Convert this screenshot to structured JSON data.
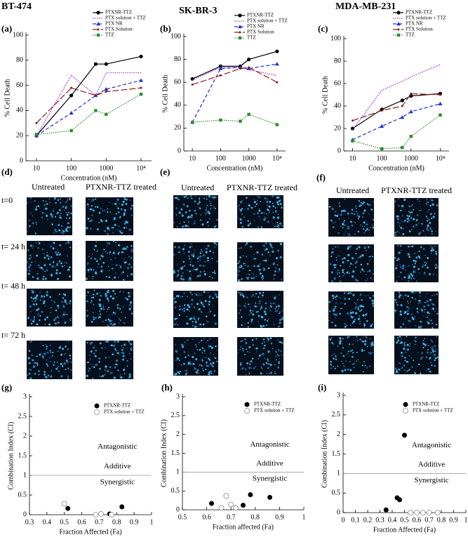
{
  "chart_data": [
    {
      "type": "line",
      "title": "BT-474",
      "panel_label": "(a)",
      "xlabel": "Concentration (nM)",
      "ylabel": "% Cell Death",
      "log_x": true,
      "x": [
        10,
        100,
        500,
        1000,
        10000
      ],
      "xlim": [
        5,
        20000
      ],
      "xticks": [
        10,
        100,
        1000,
        {
          "value": 10000,
          "label": "10⁴"
        }
      ],
      "ylim": [
        0,
        100
      ],
      "yticks": [
        0,
        20,
        40,
        60,
        80,
        100
      ],
      "series": [
        {
          "name": "PTXNR-TTZ",
          "color": "#000000",
          "style": "solid",
          "marker": "circle",
          "values": [
            20,
            52,
            77,
            77,
            83
          ]
        },
        {
          "name": "PTX solution + TTZ",
          "color": "#9b30d0",
          "style": "dotted",
          "marker": "none",
          "values": [
            20,
            68,
            52,
            70,
            70
          ]
        },
        {
          "name": "PTX NR",
          "color": "#1f2fd0",
          "style": "dashed",
          "marker": "triangle",
          "values": [
            20,
            38,
            52,
            57,
            64
          ]
        },
        {
          "name": "PTX Solution",
          "color": "#8b1a1a",
          "style": "longdash",
          "marker": "dot",
          "values": [
            30,
            58,
            52,
            55,
            58
          ]
        },
        {
          "name": "TTZ",
          "color": "#2e8b2e",
          "style": "dotted",
          "marker": "square",
          "values": [
            21,
            24,
            40,
            37,
            53
          ]
        }
      ]
    },
    {
      "type": "line",
      "title": "SK-BR-3",
      "panel_label": "(b)",
      "xlabel": "Concentration (nM)",
      "ylabel": "% Cell Death",
      "log_x": true,
      "x": [
        10,
        100,
        500,
        1000,
        10000
      ],
      "xlim": [
        5,
        20000
      ],
      "xticks": [
        10,
        100,
        1000,
        {
          "value": 10000,
          "label": "10⁴"
        }
      ],
      "ylim": [
        0,
        100
      ],
      "yticks": [
        0,
        20,
        40,
        60,
        80,
        100
      ],
      "series": [
        {
          "name": "PTXNR-TTZ",
          "color": "#000000",
          "style": "solid",
          "marker": "circle",
          "values": [
            63,
            74,
            74,
            80,
            87
          ]
        },
        {
          "name": "PTX solution + TTZ",
          "color": "#9b30d0",
          "style": "dotted",
          "marker": "none",
          "values": [
            62,
            73,
            73,
            71,
            66
          ]
        },
        {
          "name": "PTX NR",
          "color": "#1f2fd0",
          "style": "dashed",
          "marker": "triangle",
          "values": [
            25,
            72,
            73,
            72,
            76
          ]
        },
        {
          "name": "PTX Solution",
          "color": "#8b1a1a",
          "style": "longdash",
          "marker": "dot",
          "values": [
            58,
            66,
            72,
            73,
            60
          ]
        },
        {
          "name": "TTZ",
          "color": "#2e8b2e",
          "style": "dotted",
          "marker": "square",
          "values": [
            25,
            27,
            26,
            32,
            23
          ]
        }
      ]
    },
    {
      "type": "line",
      "title": "MDA-MB-231",
      "panel_label": "(c)",
      "xlabel": "Concentration (nM)",
      "ylabel": "% Cell Death",
      "log_x": true,
      "x": [
        10,
        100,
        500,
        1000,
        10000
      ],
      "xlim": [
        5,
        20000
      ],
      "xticks": [
        10,
        100,
        1000,
        {
          "value": 10000,
          "label": "10⁴"
        }
      ],
      "ylim": [
        0,
        100
      ],
      "yticks": [
        0,
        20,
        40,
        60,
        80,
        100
      ],
      "series": [
        {
          "name": "PTXNR-TTZ",
          "color": "#000000",
          "style": "solid",
          "marker": "circle",
          "values": [
            20,
            37,
            45,
            49,
            51
          ]
        },
        {
          "name": "PTX solution + TTZ",
          "color": "#9b30d0",
          "style": "dotted",
          "marker": "none",
          "values": [
            19,
            54,
            62,
            66,
            77
          ]
        },
        {
          "name": "PTX NR",
          "color": "#1f2fd0",
          "style": "dashed",
          "marker": "triangle",
          "values": [
            10,
            22,
            30,
            35,
            42
          ]
        },
        {
          "name": "PTX Solution",
          "color": "#8b1a1a",
          "style": "longdash",
          "marker": "dot",
          "values": [
            27,
            36,
            40,
            51,
            50
          ]
        },
        {
          "name": "TTZ",
          "color": "#2e8b2e",
          "style": "dotted",
          "marker": "square",
          "values": [
            9,
            2,
            3,
            13,
            32
          ]
        }
      ]
    },
    {
      "type": "scatter",
      "panel_label": "(g)",
      "xlabel": "Fraction Affected (Fa)",
      "ylabel": "Combination Index (CI)",
      "xlim": [
        0.3,
        1
      ],
      "xticks": [
        0.3,
        0.4,
        0.5,
        0.6,
        0.7,
        0.8,
        0.9,
        1
      ],
      "ylim": [
        0,
        3
      ],
      "yticks": [
        0,
        0.5,
        1,
        1.5,
        2,
        2.5,
        3
      ],
      "hline": 1,
      "annotations": [
        "Antagonistic",
        "Additive",
        "Synergistic"
      ],
      "series": [
        {
          "name": "PTXNR-TTZ",
          "color": "#000000",
          "marker": "filled",
          "x": [
            0.52,
            0.76,
            0.83
          ],
          "values": [
            0.16,
            0.02,
            0.2
          ]
        },
        {
          "name": "PTX solution + TTZ",
          "color": "#888888",
          "marker": "open",
          "x": [
            0.5,
            0.68,
            0.71,
            0.77
          ],
          "values": [
            0.28,
            0.0,
            0.02,
            0.0
          ]
        }
      ]
    },
    {
      "type": "scatter",
      "panel_label": "(h)",
      "xlabel": "Fraction affected (Fa)",
      "ylabel": "Combination Index (CI)",
      "xlim": [
        0.5,
        1
      ],
      "xticks": [
        0.5,
        0.6,
        0.7,
        0.8,
        0.9,
        1
      ],
      "ylim": [
        0,
        3
      ],
      "yticks": [
        0,
        0.5,
        1,
        1.5,
        2,
        2.5,
        3
      ],
      "hline": 1,
      "annotations": [
        "Antagonistic",
        "Additive",
        "Synergistic"
      ],
      "series": [
        {
          "name": "PTXNR-TTZ",
          "color": "#000000",
          "marker": "filled",
          "x": [
            0.62,
            0.75,
            0.78,
            0.86
          ],
          "values": [
            0.17,
            0.12,
            0.4,
            0.33
          ]
        },
        {
          "name": "PTX solution + TTZ",
          "color": "#888888",
          "marker": "open",
          "x": [
            0.66,
            0.68,
            0.7,
            0.72
          ],
          "values": [
            0.05,
            0.37,
            0.14,
            0.05
          ]
        }
      ]
    },
    {
      "type": "scatter",
      "panel_label": "(i)",
      "xlabel": "Fraction Affected (Fa)",
      "ylabel": "Combination Index (CI)",
      "xlim": [
        0,
        1
      ],
      "xticks": [
        0,
        0.1,
        0.2,
        0.3,
        0.4,
        0.5,
        0.6,
        0.7,
        0.8,
        0.9,
        1
      ],
      "ylim": [
        0,
        3
      ],
      "yticks": [
        0,
        0.5,
        1,
        1.5,
        2,
        2.5,
        3
      ],
      "hline": 1,
      "annotations": [
        "Antagonistic",
        "Additive",
        "Synergistic"
      ],
      "series": [
        {
          "name": "PTXNR-TTZ",
          "color": "#000000",
          "marker": "filled",
          "x": [
            0.35,
            0.44,
            0.46,
            0.5
          ],
          "values": [
            0.07,
            0.38,
            0.33,
            1.98
          ]
        },
        {
          "name": "PTX solution + TTZ",
          "color": "#888888",
          "marker": "open",
          "x": [
            0.55,
            0.6,
            0.65,
            0.7,
            0.77
          ],
          "values": [
            0,
            0,
            0,
            0,
            0
          ]
        }
      ]
    }
  ],
  "image_panels": [
    {
      "label": "(d)",
      "columns": [
        "Untreated",
        "PTXNR-TTZ treated"
      ],
      "rows": [
        "t=0",
        "t= 24 h",
        "t= 48 h",
        "t= 72 h"
      ]
    },
    {
      "label": "(e)",
      "columns": [
        "Untreated",
        "PTXNR-TTZ treated"
      ]
    },
    {
      "label": "(f)",
      "columns": [
        "Untreated",
        "PTXNR-TTZ treated"
      ]
    }
  ]
}
